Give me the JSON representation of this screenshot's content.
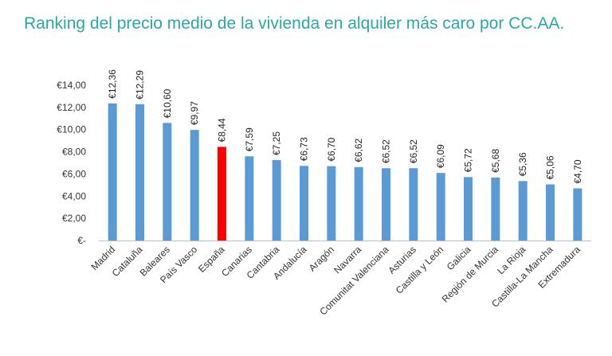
{
  "chart_data": {
    "type": "bar",
    "title": "Ranking del precio medio de la vivienda en alquiler más caro por CC.AA.",
    "categories": [
      "Madrid",
      "Cataluña",
      "Baleares",
      "País Vasco",
      "España",
      "Canarias",
      "Cantabria",
      "Andalucía",
      "Aragón",
      "Navarra",
      "Comunitat Valenciana",
      "Asturias",
      "Castilla y León",
      "Galicia",
      "Región de Murcia",
      "La Rioja",
      "Castilla-La Mancha",
      "Extremadura"
    ],
    "values": [
      12.36,
      12.29,
      10.6,
      9.97,
      8.44,
      7.59,
      7.25,
      6.73,
      6.7,
      6.62,
      6.52,
      6.52,
      6.09,
      5.72,
      5.68,
      5.36,
      5.06,
      4.7
    ],
    "data_labels": [
      "€12,36",
      "€12,29",
      "€10,60",
      "€9,97",
      "€8,44",
      "€7,59",
      "€7,25",
      "€6,73",
      "€6,70",
      "€6,62",
      "€6,52",
      "€6,52",
      "€6,09",
      "€5,72",
      "€5,68",
      "€5,36",
      "€5,06",
      "€4,70"
    ],
    "ylim": [
      0,
      14
    ],
    "yticks": [
      0,
      2,
      4,
      6,
      8,
      10,
      12,
      14
    ],
    "ytick_labels": [
      "€-",
      "€2,00",
      "€4,00",
      "€6,00",
      "€8,00",
      "€10,00",
      "€12,00",
      "€14,00"
    ],
    "highlight_category": "España",
    "colors": {
      "bar": "#5b9bd5",
      "highlight": "#ff0000",
      "axis": "#bfbfbf",
      "title": "#2aa7a7"
    },
    "grid": false,
    "legend": "none"
  }
}
